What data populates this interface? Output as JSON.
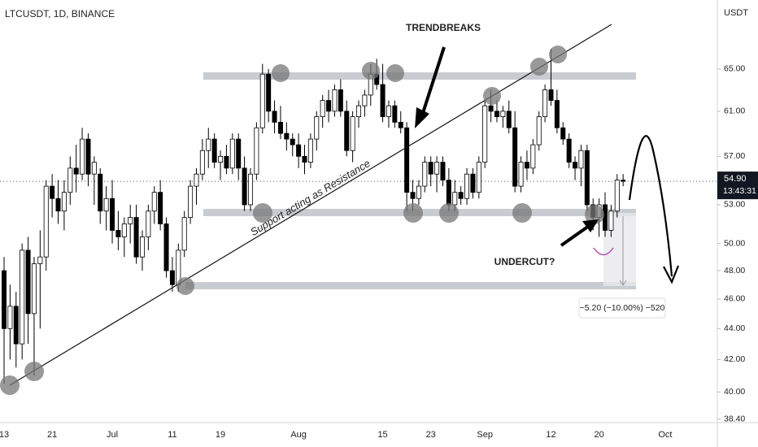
{
  "chart_data": {
    "type": "candlestick",
    "title": "LTCUSDT, 1D, BINANCE",
    "axis_unit": "USDT",
    "categories": [
      "13",
      null,
      null,
      null,
      null,
      null,
      null,
      null,
      "21",
      null,
      null,
      null,
      null,
      null,
      null,
      null,
      null,
      null,
      "Jul",
      null,
      null,
      null,
      null,
      null,
      null,
      null,
      null,
      null,
      "11",
      null,
      null,
      null,
      null,
      null,
      null,
      null,
      "19",
      null,
      null,
      null,
      null,
      null,
      null,
      null,
      null,
      null,
      null,
      null,
      null,
      "Aug",
      null,
      null,
      null,
      null,
      null,
      null,
      null,
      null,
      null,
      null,
      null,
      null,
      null,
      "15",
      null,
      null,
      null,
      null,
      null,
      null,
      null,
      "23",
      null,
      null,
      null,
      null,
      null,
      null,
      null,
      null,
      "Sep",
      null,
      null,
      null,
      null,
      null,
      null,
      null,
      null,
      null,
      null,
      "12",
      null,
      null,
      null,
      null,
      null,
      null,
      null,
      "20",
      null,
      null,
      null,
      null,
      null,
      null,
      null,
      null,
      null,
      null,
      "Oct"
    ],
    "open": [
      48,
      44,
      45.5,
      43,
      49.5,
      45,
      48.5,
      49,
      54.5,
      53.5,
      52.5,
      54,
      56,
      55.5,
      58.5,
      55.5,
      55.5,
      52.5,
      53.5,
      51,
      50.5,
      51.5,
      52,
      49,
      50.5,
      52.5,
      54,
      51.5,
      48,
      47,
      49.5,
      52,
      54.5,
      55.5,
      57.5,
      58.5,
      56.5,
      57,
      56,
      58.5,
      56,
      53,
      55.5,
      59.5,
      64.5,
      61,
      60,
      59,
      58.5,
      58,
      57,
      56.5,
      58.5,
      60.5,
      62,
      61,
      63,
      61,
      57.5,
      60.5,
      61.5,
      62.5,
      64.5,
      63.5,
      60.5,
      61.5,
      60,
      59.5,
      54,
      53.5,
      54.5,
      56.5,
      55.5,
      56.5,
      55,
      53,
      54,
      53.5,
      55.5,
      54,
      56.5,
      61.5,
      61,
      60.5,
      61,
      59.5,
      54.5,
      56.5,
      56,
      58,
      60.5,
      63,
      62,
      59.5,
      58.5,
      56.5,
      56,
      57.5,
      53,
      52,
      53,
      51,
      52.5,
      55,
      null,
      null,
      null,
      null,
      null,
      null,
      null
    ],
    "high": [
      49,
      47,
      46.5,
      50,
      50.5,
      49,
      51,
      55,
      55.5,
      55,
      55,
      57,
      58,
      59.5,
      59,
      57,
      56,
      54.5,
      55,
      52.5,
      52,
      53,
      53,
      51,
      53,
      54.5,
      55,
      52,
      49,
      50,
      52.5,
      55,
      56,
      58.5,
      59.5,
      59,
      57.5,
      58,
      59,
      59,
      57,
      56,
      60,
      65.5,
      65,
      62,
      61.5,
      60,
      59,
      59,
      58,
      59,
      61,
      62.5,
      63,
      63.5,
      64,
      62,
      61,
      62,
      63,
      65.5,
      66,
      65.5,
      62,
      62,
      61,
      60,
      55,
      55,
      57,
      57,
      57,
      57,
      56,
      55,
      54.5,
      56,
      56,
      57,
      62,
      63,
      62,
      61.5,
      62,
      61,
      57,
      57.5,
      58.5,
      61,
      63.5,
      67,
      63,
      60,
      59,
      57,
      58,
      58,
      53.5,
      53.5,
      54,
      53,
      55.5,
      55.5,
      null,
      null,
      null,
      null,
      null,
      null,
      null
    ],
    "low": [
      40.5,
      42,
      41.5,
      42,
      43,
      41,
      44,
      48,
      52,
      51.5,
      51,
      53,
      54,
      55,
      54.5,
      53,
      51.5,
      51,
      50,
      49.5,
      49,
      50,
      48.5,
      48,
      49.5,
      51.5,
      51,
      47.5,
      46.5,
      46.5,
      49,
      51.5,
      53,
      55,
      56,
      56,
      55,
      55.5,
      55.5,
      55,
      52.5,
      52.5,
      55,
      59,
      60,
      59,
      58.5,
      57.5,
      57,
      56,
      55.5,
      56,
      57.5,
      59.5,
      60,
      60.5,
      60.5,
      57,
      56.5,
      59.5,
      60.5,
      61.5,
      63,
      60,
      59.5,
      59.5,
      59,
      52.5,
      52.5,
      53,
      54,
      54.5,
      54,
      54.5,
      52.5,
      52.5,
      53,
      53,
      53.5,
      53.5,
      56,
      60,
      60,
      59.5,
      59,
      54,
      54,
      55,
      55.5,
      57.5,
      60,
      61.5,
      59,
      58,
      56,
      55,
      54.5,
      52.5,
      51,
      50.5,
      50.5,
      50.5,
      52,
      54.5,
      null,
      null,
      null,
      null,
      null,
      null,
      null
    ],
    "close": [
      44,
      45.5,
      43,
      49.5,
      45,
      48.5,
      49,
      54.5,
      53.5,
      52.5,
      54,
      56,
      55.5,
      58.5,
      55.5,
      56.5,
      52.5,
      53.5,
      51,
      50.5,
      51.5,
      52,
      49,
      50.5,
      52.5,
      54,
      51.5,
      48,
      47,
      49.5,
      52,
      54.5,
      55.5,
      57.5,
      58.5,
      56.5,
      57,
      56,
      58.5,
      56,
      53,
      55.5,
      59.5,
      64.5,
      61,
      60,
      59,
      58.5,
      58,
      57,
      56.5,
      58.5,
      60.5,
      62,
      61,
      63,
      61,
      57.5,
      60.5,
      61.5,
      62.5,
      64.5,
      63.5,
      60.5,
      61.5,
      60,
      59.5,
      54,
      53.5,
      54.5,
      56.5,
      55.5,
      56.5,
      55,
      53,
      54,
      53.5,
      55.5,
      54,
      56.5,
      61.5,
      61,
      60.5,
      61,
      59.5,
      54.5,
      56.5,
      56,
      58,
      60.5,
      63,
      62,
      59.5,
      58.5,
      56.5,
      56,
      57.5,
      53,
      52,
      53,
      51,
      52.5,
      55,
      54.9,
      null,
      null,
      null,
      null,
      null,
      null,
      null
    ],
    "up_color": "#ffffff",
    "down_color": "#000000",
    "log_scale": true,
    "ylim": [
      38.2,
      72.1
    ],
    "yticks": [
      {
        "value": 38.4,
        "label": "38.40"
      },
      {
        "value": 40,
        "label": "40.00"
      },
      {
        "value": 42,
        "label": "42.00"
      },
      {
        "value": 44,
        "label": "44.00"
      },
      {
        "value": 46,
        "label": "46.00"
      },
      {
        "value": 48,
        "label": "48.00"
      },
      {
        "value": 50,
        "label": "50.00"
      },
      {
        "value": 53,
        "label": "53.00"
      },
      {
        "value": 57,
        "label": "57.00"
      },
      {
        "value": 61,
        "label": "61.00"
      },
      {
        "value": 65,
        "label": "65.00"
      }
    ],
    "last_price": {
      "value": 54.9,
      "label": "54.90"
    },
    "countdown": "13:43:31",
    "annotations": {
      "trendline": "Support acting as Resistance",
      "trendbreaks": "TRENDBREAKS",
      "undercut": "UNDERCUT?",
      "measure": "−5.20 (−10.00%) −520"
    }
  }
}
